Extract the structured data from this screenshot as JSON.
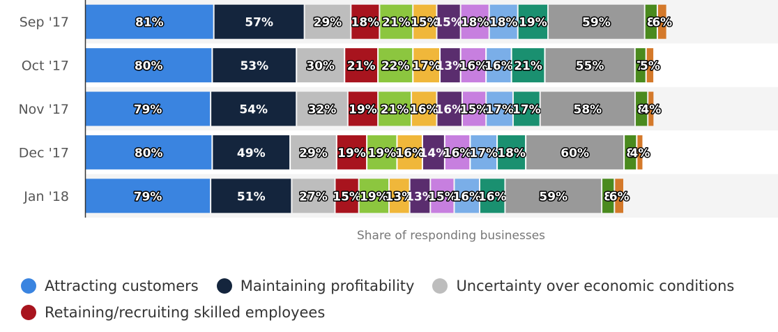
{
  "chart_data": {
    "type": "bar",
    "orientation": "horizontal",
    "stacked": true,
    "xlabel": "Share of responding businesses",
    "categories": [
      "Sep '17",
      "Oct '17",
      "Nov '17",
      "Dec '17",
      "Jan '18"
    ],
    "legend_position": "bottom",
    "series": [
      {
        "name": "Attracting customers",
        "color": "#3a84e0",
        "values": [
          81,
          80,
          79,
          80,
          79
        ]
      },
      {
        "name": "Maintaining profitability",
        "color": "#14253d",
        "values": [
          57,
          53,
          54,
          49,
          51
        ]
      },
      {
        "name": "Uncertainty over economic conditions",
        "color": "#bdbdbd",
        "values": [
          29,
          30,
          32,
          29,
          27
        ]
      },
      {
        "name": "Retaining/recruiting skilled employees",
        "color": "#a8141e",
        "values": [
          18,
          21,
          19,
          19,
          15
        ]
      },
      {
        "color": "#8cc63f",
        "values": [
          21,
          22,
          21,
          19,
          19
        ]
      },
      {
        "color": "#f0b73a",
        "values": [
          15,
          17,
          16,
          16,
          13
        ]
      },
      {
        "color": "#5a2d6e",
        "values": [
          15,
          13,
          16,
          14,
          13
        ]
      },
      {
        "color": "#c77fdf",
        "values": [
          18,
          16,
          15,
          16,
          15
        ]
      },
      {
        "color": "#7aaee8",
        "values": [
          18,
          16,
          17,
          17,
          16
        ]
      },
      {
        "color": "#1a9070",
        "values": [
          19,
          21,
          17,
          18,
          16
        ]
      },
      {
        "color": "#999999",
        "values": [
          59,
          55,
          58,
          60,
          59
        ]
      },
      {
        "color": "#4a8a1e",
        "values": [
          8,
          7,
          8,
          8,
          8
        ]
      },
      {
        "color": "#d4792a",
        "values": [
          6,
          5,
          4,
          4,
          6
        ]
      }
    ],
    "data_labels": [
      [
        "81%",
        "57%",
        "29%",
        "18%",
        "21%",
        "15%",
        "15%",
        "18%",
        "18%",
        "19%",
        "59%",
        "8",
        "6%"
      ],
      [
        "80%",
        "53%",
        "30%",
        "21%",
        "22%",
        "17%",
        "13%",
        "16%",
        "16%",
        "21%",
        "55%",
        "7",
        "5%"
      ],
      [
        "79%",
        "54%",
        "32%",
        "19%",
        "21%",
        "16%",
        "16%",
        "15%",
        "17%",
        "17%",
        "58%",
        "8",
        "4%"
      ],
      [
        "80%",
        "49%",
        "29%",
        "19%",
        "19%",
        "16%",
        "14%",
        "16%",
        "17%",
        "18%",
        "60%",
        "8",
        "4%"
      ],
      [
        "79%",
        "51%",
        "27%",
        "15%",
        "19%",
        "13%",
        "13%",
        "15%",
        "16%",
        "16%",
        "59%",
        "8",
        "6%"
      ]
    ]
  },
  "legend": {
    "items": [
      {
        "label": "Attracting customers",
        "color": "#3a84e0"
      },
      {
        "label": "Maintaining profitability",
        "color": "#14253d"
      },
      {
        "label": "Uncertainty over economic conditions",
        "color": "#bdbdbd"
      },
      {
        "label": "Retaining/recruiting skilled employees",
        "color": "#a8141e"
      }
    ]
  }
}
